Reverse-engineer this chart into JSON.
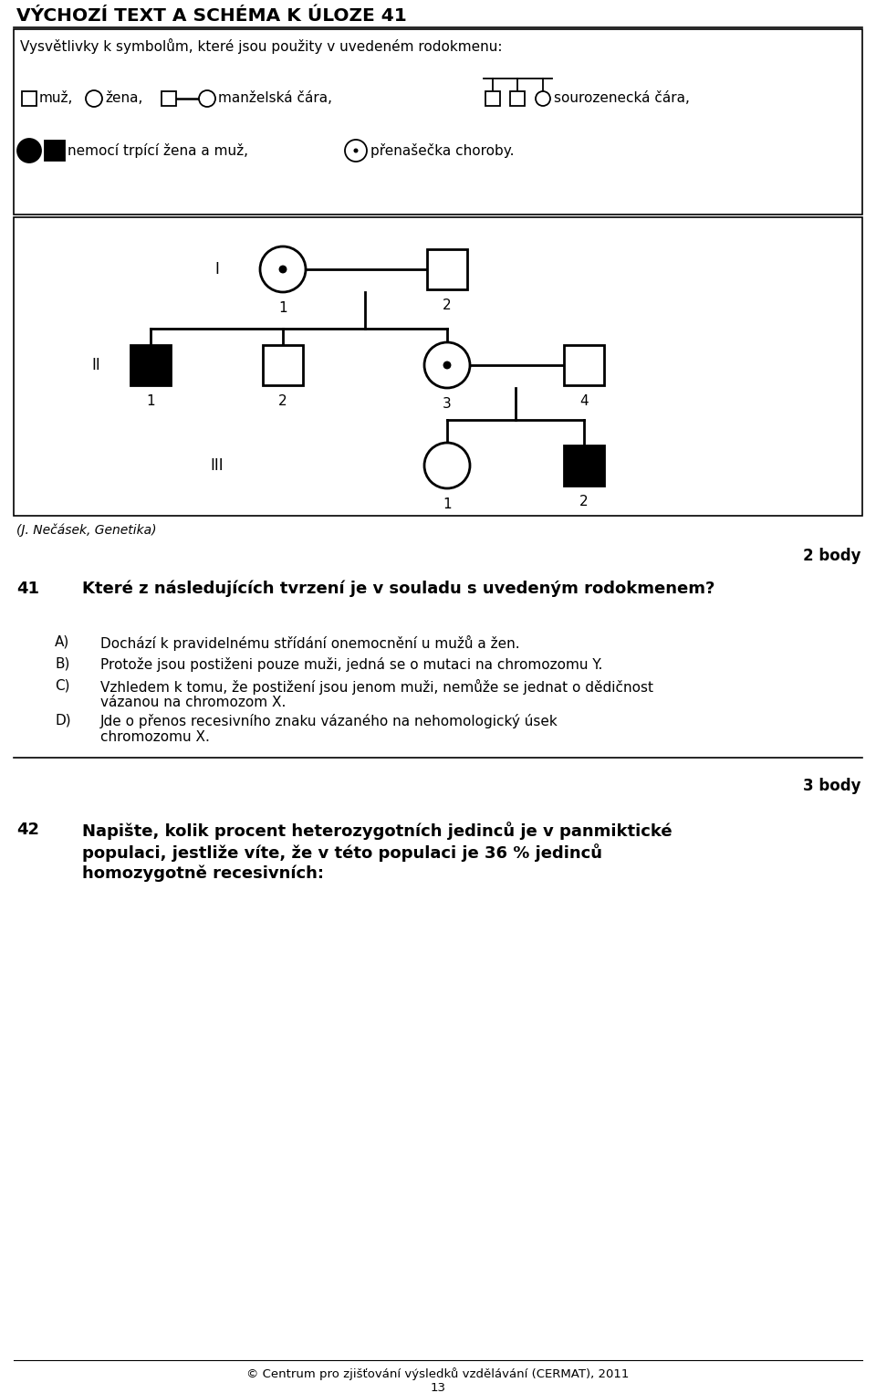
{
  "title": "VÝCHOZÍ TEXT A SCHÉMA K ÚLOZE 41",
  "legend_text": "Vysvětlivky k symbolům, které jsou použity v uvedeném rodokmenu:",
  "source_text": "(J. Nečásek, Genetika)",
  "q41_number": "41",
  "q41_points": "2 body",
  "q41_question": "Které z následujících tvrzení je v souladu s uvedeným rodokmenem?",
  "q41_A": "Dochází k pravidelnému střídání onemocnění u mužů a žen.",
  "q41_B": "Protože jsou postiženi pouze muži, jedná se o mutaci na chromozomu Y.",
  "q41_C1": "Vzhledem k tomu, že postižení jsou jenom muži, nemůže se jednat o dědičnost",
  "q41_C2": "vázanou na chromozom X.",
  "q41_D1": "Jde o přenos recesivního znaku vázaného na nehomologický úsek",
  "q41_D2": "chromozomu X.",
  "q42_number": "42",
  "q42_points": "3 body",
  "q42_q1": "Napište, kolik procent heterozygotních jedinců je v panmiktické",
  "q42_q2": "populaci, jestliže víte, že v této populaci je 36 % jedinců",
  "q42_q3": "homozygotně recesivních:",
  "footer": "© Centrum pro zjišťování výsledků vzdělávání (CERMAT), 2011",
  "page": "13"
}
